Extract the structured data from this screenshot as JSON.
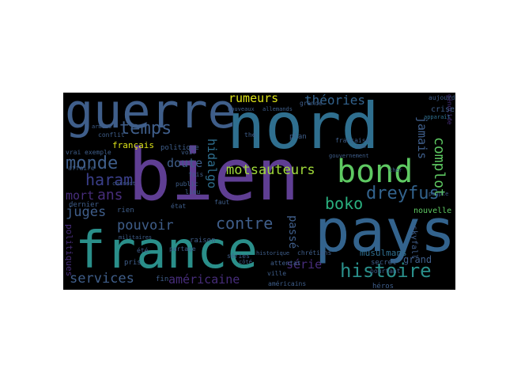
{
  "colors": {
    "background": "#000000",
    "canvas": "#ffffff",
    "teal": "#2a8f8a",
    "blue": "#33638d",
    "slate": "#3f5e8a",
    "purple": "#472d7b",
    "indigo": "#3a3f8a",
    "green": "#5ec962",
    "lime": "#a0da39",
    "yellow": "#dde318",
    "aqua": "#2ab07f"
  },
  "wordcloud": {
    "words": {
      "bien": "bien",
      "nord": "nord",
      "france": "france",
      "pays": "pays",
      "guerre": "guerre",
      "bond": "bond",
      "histoire": "histoire",
      "boko": "boko",
      "dreyfus": "dreyfus",
      "temps": "temps",
      "monde": "monde",
      "haram": "haram",
      "contre": "contre",
      "pouvoir": "pouvoir",
      "services": "services",
      "americaine": "américaine",
      "juges": "juges",
      "rumeurs": "rumeurs",
      "theories": "théories",
      "complot": "complot",
      "motsauteurs": "motsauteurs",
      "doute": "doute",
      "ans": "ans",
      "mort": "mort",
      "hidalgo": "hidalgo",
      "jamais": "jamais",
      "passe": "passé",
      "serie": "série",
      "grand": "grand",
      "musulmans": "musulmans",
      "francais": "français",
      "nouvelle": "nouvelle",
      "skyfall": "skyfall",
      "genocide": "génocide",
      "crise": "crise",
      "politiques": "politiques",
      "politique": "politique",
      "heros": "héros",
      "secret": "secret",
      "pourtant": "pourtant",
      "plan": "plan",
      "dernier": "dernier",
      "affaire": "affaire",
      "exemple": "exemple",
      "vrai": "vrai",
      "conflit": "conflit",
      "americains": "américains",
      "ville": "ville",
      "fin": "fin",
      "raison": "raison",
      "faut": "faut",
      "lieu": "lieu",
      "public": "public",
      "etat": "état",
      "rien": "rien",
      "pris": "pris",
      "ete": "été",
      "series": "séries",
      "voir": "voir",
      "fois": "fois",
      "the": "the",
      "grande": "grande",
      "chretiens": "chrétiens",
      "attentat": "attentat",
      "gouvernement": "gouvernement",
      "francaise": "française",
      "nom": "nom",
      "aujourd": "aujourd",
      "nouveaux": "nouveaux",
      "allemands": "allemands",
      "cote": "côté",
      "partage": "partage",
      "militaires": "militaires",
      "correct": "correct",
      "armees": "armées",
      "historique": "historique",
      "apparait": "apparaît",
      "cher": "cher",
      "peuple": "peuple"
    }
  }
}
